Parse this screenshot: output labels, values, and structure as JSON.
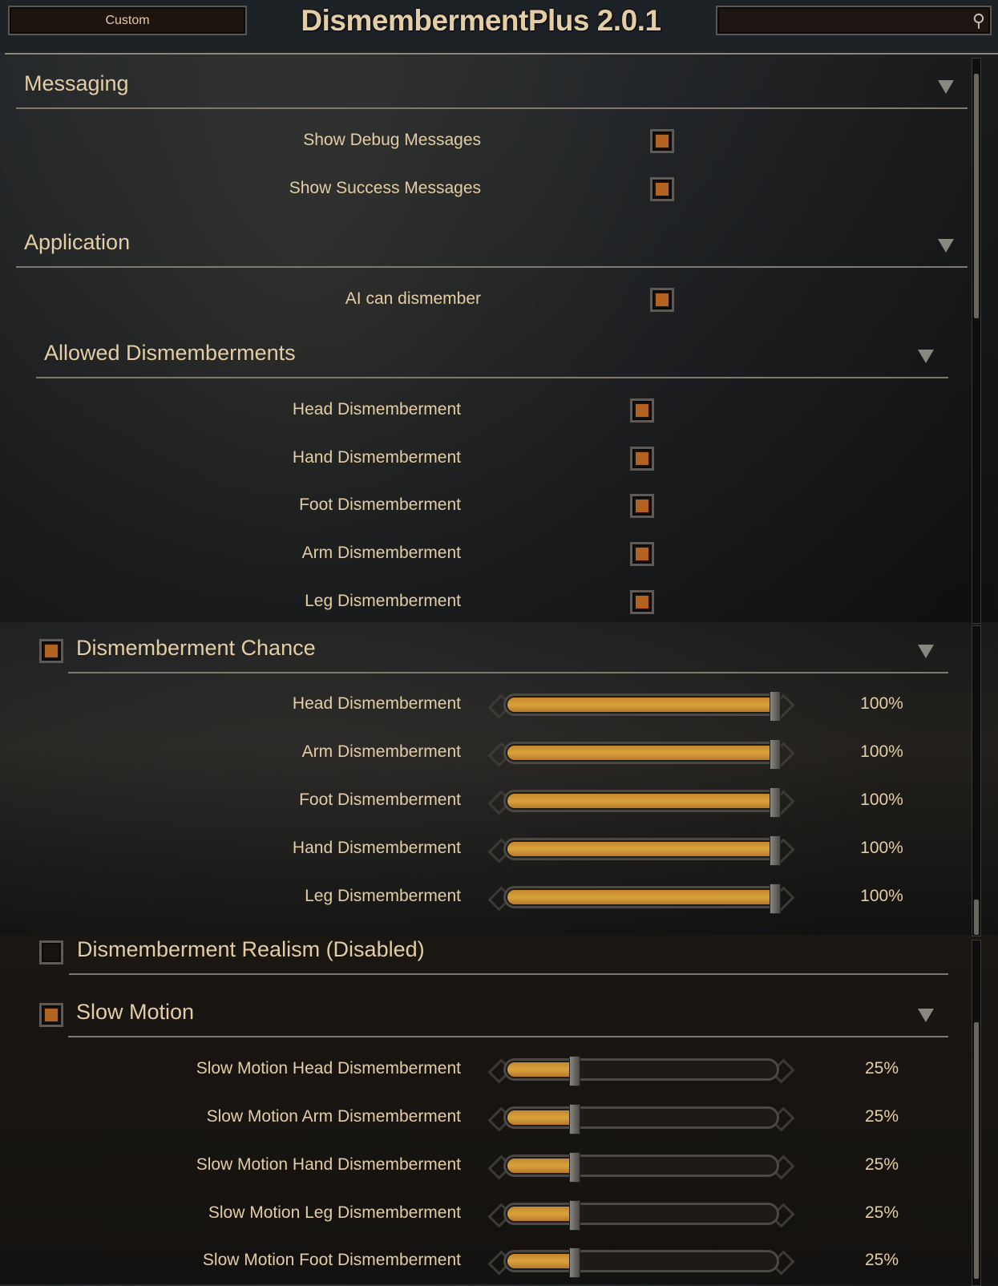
{
  "header": {
    "preset_label": "Custom",
    "title": "DismembermentPlus 2.0.1",
    "search_icon": "search-icon"
  },
  "colors": {
    "accent": "#b3621f",
    "slider_fill": "#daa33c",
    "text": "#e3cda4"
  },
  "sections": {
    "messaging": {
      "title": "Messaging",
      "items": [
        {
          "label": "Show Debug Messages",
          "checked": true
        },
        {
          "label": "Show Success Messages",
          "checked": true
        }
      ]
    },
    "application": {
      "title": "Application",
      "items": [
        {
          "label": "AI can dismember",
          "checked": true
        }
      ]
    },
    "allowed": {
      "title": "Allowed Dismemberments",
      "items": [
        {
          "label": "Head Dismemberment",
          "checked": true
        },
        {
          "label": "Hand Dismemberment",
          "checked": true
        },
        {
          "label": "Foot Dismemberment",
          "checked": true
        },
        {
          "label": "Arm Dismemberment",
          "checked": true
        },
        {
          "label": "Leg Dismemberment",
          "checked": true
        }
      ]
    },
    "chance": {
      "title": "Dismemberment Chance",
      "enabled": true,
      "items": [
        {
          "label": "Head Dismemberment",
          "value": 100,
          "display": "100%"
        },
        {
          "label": "Arm Dismemberment",
          "value": 100,
          "display": "100%"
        },
        {
          "label": "Foot Dismemberment",
          "value": 100,
          "display": "100%"
        },
        {
          "label": "Hand Dismemberment",
          "value": 100,
          "display": "100%"
        },
        {
          "label": "Leg Dismemberment",
          "value": 100,
          "display": "100%"
        }
      ]
    },
    "realism": {
      "title": "Dismemberment Realism (Disabled)",
      "enabled": false
    },
    "slowmo": {
      "title": "Slow Motion",
      "enabled": true,
      "items": [
        {
          "label": "Slow Motion Head Dismemberment",
          "value": 25,
          "display": "25%"
        },
        {
          "label": "Slow Motion Arm Dismemberment",
          "value": 25,
          "display": "25%"
        },
        {
          "label": "Slow Motion Hand Dismemberment",
          "value": 25,
          "display": "25%"
        },
        {
          "label": "Slow Motion Leg Dismemberment",
          "value": 25,
          "display": "25%"
        },
        {
          "label": "Slow Motion Foot Dismemberment",
          "value": 25,
          "display": "25%"
        }
      ]
    }
  }
}
